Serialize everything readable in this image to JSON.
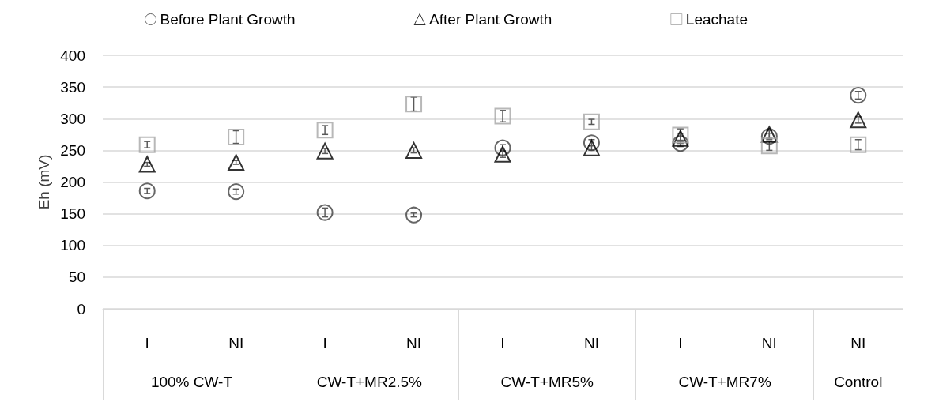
{
  "chart_data": {
    "type": "scatter",
    "ylabel": "Eh (mV)",
    "categories": [
      "I",
      "NI",
      "I",
      "NI",
      "I",
      "NI",
      "I",
      "NI",
      "NI"
    ],
    "annotations": [
      "100% CW-T",
      "CW-T+MR2.5%",
      "CW-T+MR5%",
      "CW-T+MR7%",
      "Control"
    ],
    "series": [
      {
        "name": "Before Plant Growth",
        "color": "#404040",
        "marker": "circle",
        "values": [
          186,
          185,
          152,
          148,
          254,
          262,
          261,
          272,
          337
        ],
        "errors": [
          4,
          4,
          7,
          3,
          5,
          5,
          5,
          5,
          6
        ]
      },
      {
        "name": "After Plant Growth",
        "color": "#000000",
        "marker": "triangle",
        "values": [
          228,
          231,
          249,
          250,
          244,
          254,
          269,
          275,
          298
        ],
        "errors": [
          3,
          3,
          4,
          4,
          5,
          4,
          8,
          6,
          5
        ]
      },
      {
        "name": "Leachate",
        "color": "#a6a6a6",
        "marker": "square",
        "values": [
          259,
          271,
          282,
          323,
          304,
          295,
          274,
          257,
          259
        ],
        "errors": [
          5,
          10,
          7,
          11,
          9,
          4,
          10,
          7,
          8
        ]
      }
    ],
    "ylim": [
      0,
      400
    ],
    "yticks": [
      0,
      50,
      100,
      150,
      200,
      250,
      300,
      350,
      400
    ],
    "grid": "y",
    "legend": "top"
  }
}
